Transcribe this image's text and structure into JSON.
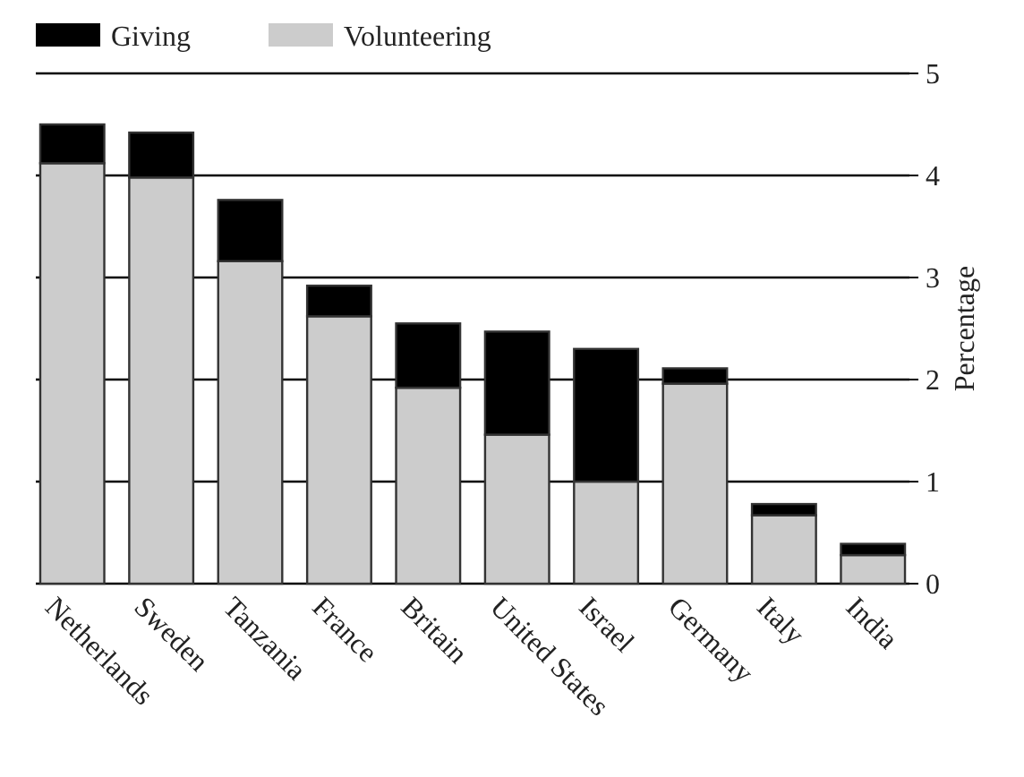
{
  "chart_data": {
    "type": "bar",
    "stacked": true,
    "ylabel": "Percentage",
    "categories": [
      "Netherlands",
      "Sweden",
      "Tanzania",
      "France",
      "Britain",
      "United States",
      "Israel",
      "Germany",
      "Italy",
      "India"
    ],
    "series": [
      {
        "name": "Volunteering",
        "color": "#cccccc",
        "values": [
          4.12,
          3.98,
          3.16,
          2.62,
          1.92,
          1.46,
          1.0,
          1.96,
          0.67,
          0.28
        ]
      },
      {
        "name": "Giving",
        "color": "#000000",
        "values": [
          0.38,
          0.44,
          0.6,
          0.3,
          0.63,
          1.01,
          1.3,
          0.15,
          0.11,
          0.11
        ]
      }
    ],
    "ylim": [
      0,
      5
    ],
    "yticks": [
      0,
      1,
      2,
      3,
      4,
      5
    ],
    "grid": "y",
    "legend": "top left"
  }
}
